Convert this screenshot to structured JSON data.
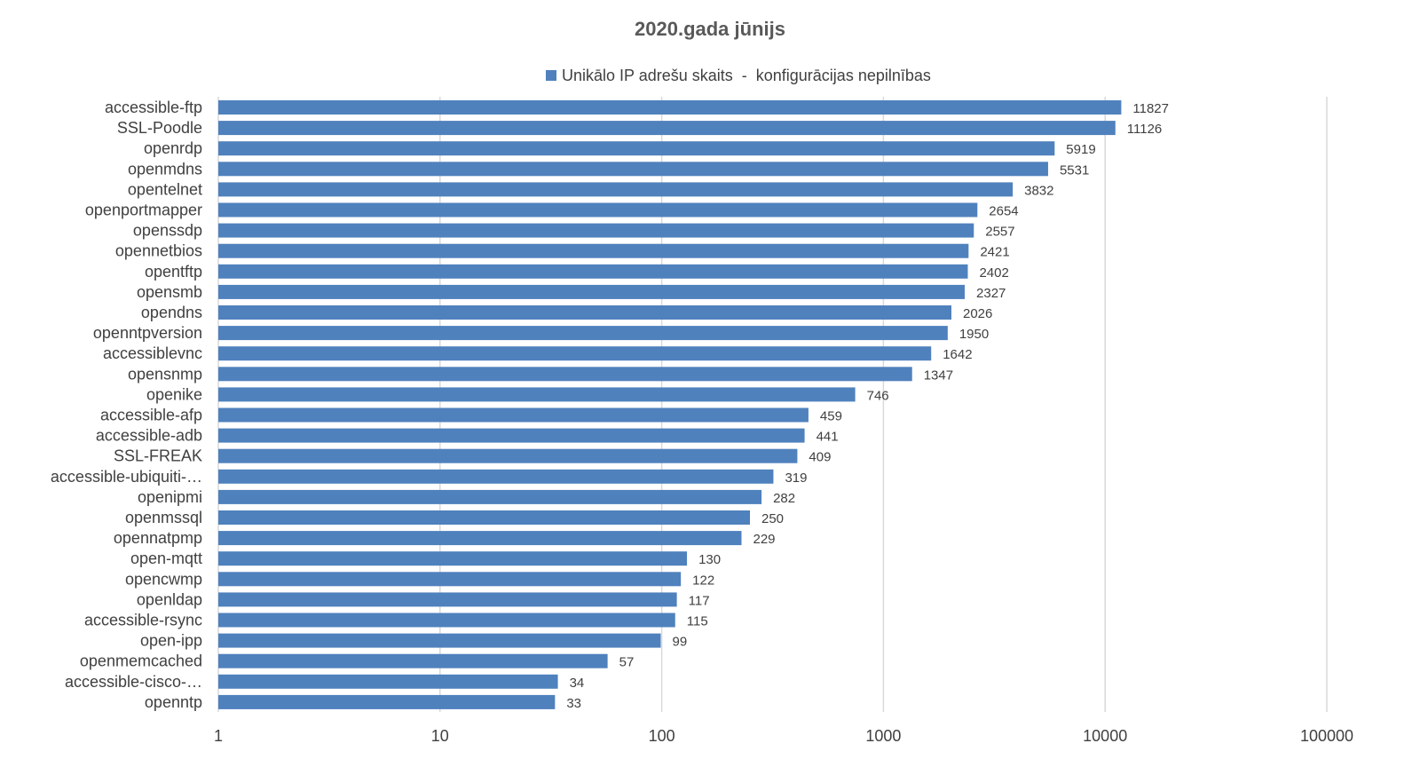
{
  "chart_data": {
    "type": "bar",
    "orientation": "horizontal",
    "title": "2020.gada jūnijs",
    "xscale": "log",
    "xlim": [
      1,
      100000
    ],
    "xticks": [
      "1",
      "10",
      "100",
      "1000",
      "10000",
      "100000"
    ],
    "grid": true,
    "legend_position": "top",
    "series": [
      {
        "name": "Unikālo IP adrešu skaits  -  konfigurācijas nepilnības",
        "color": "#4f81bd",
        "values": [
          11827,
          11126,
          5919,
          5531,
          3832,
          2654,
          2557,
          2421,
          2402,
          2327,
          2026,
          1950,
          1642,
          1347,
          746,
          459,
          441,
          409,
          319,
          282,
          250,
          229,
          130,
          122,
          117,
          115,
          99,
          57,
          34,
          33
        ]
      }
    ],
    "categories": [
      "accessible-ftp",
      "SSL-Poodle",
      "openrdp",
      "openmdns",
      "opentelnet",
      "openportmapper",
      "openssdp",
      "opennetbios",
      "opentftp",
      "opensmb",
      "opendns",
      "openntpversion",
      "accessiblevnc",
      "opensnmp",
      "openike",
      "accessible-afp",
      "accessible-adb",
      "SSL-FREAK",
      "accessible-ubiquiti-…",
      "openipmi",
      "openmssql",
      "opennatpmp",
      "open-mqtt",
      "opencwmp",
      "openldap",
      "accessible-rsync",
      "open-ipp",
      "openmemcached",
      "accessible-cisco-…",
      "openntp"
    ]
  }
}
